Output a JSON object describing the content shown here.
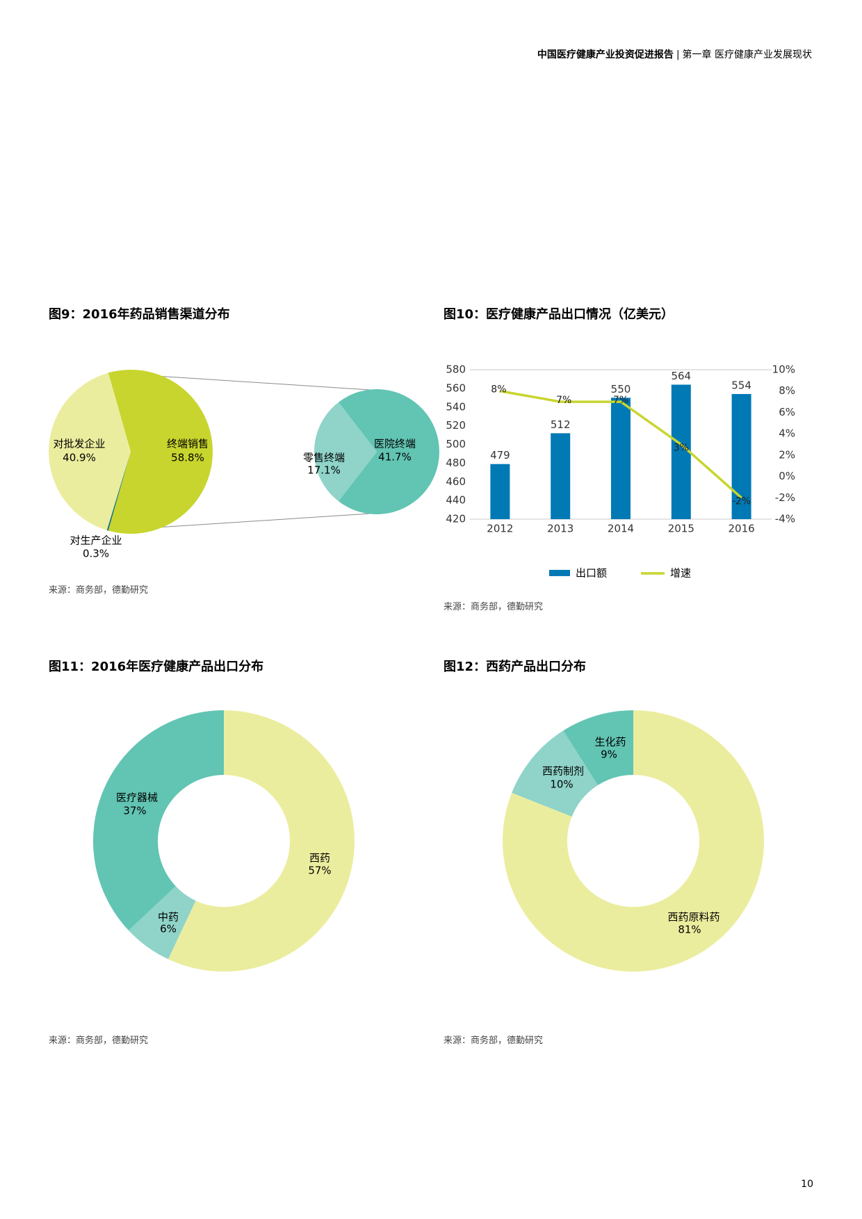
{
  "header": {
    "report": "中国医疗健康产业投资促进报告",
    "separator": "|",
    "chapter": "第一章  医疗健康产业发展现状"
  },
  "page_number": "10",
  "colors": {
    "lime": "#c8d52e",
    "pale_yellow": "#ebed9e",
    "teal": "#62c4b3",
    "pale_teal": "#8fd3c9",
    "blue": "#0079b5",
    "dark_teal": "#1c7a7e"
  },
  "charts": [
    {
      "title": "图9：2016年药品销售渠道分布",
      "source": "来源：商务部，德勤研究",
      "chart_data": {
        "type": "pie",
        "main": [
          {
            "label": "终端销售",
            "value": "58.8%",
            "pct": 58.8
          },
          {
            "label": "对生产企业",
            "value": "0.3%",
            "pct": 0.3
          },
          {
            "label": "对批发企业",
            "value": "40.9%",
            "pct": 40.9
          }
        ],
        "breakout": [
          {
            "label": "医院终端",
            "value": "41.7%",
            "pct": 41.7
          },
          {
            "label": "零售终端",
            "value": "17.1%",
            "pct": 17.1
          }
        ]
      }
    },
    {
      "title": "图10：医疗健康产品出口情况（亿美元）",
      "source": "来源：商务部，德勤研究",
      "chart_data": {
        "type": "bar",
        "categories": [
          "2012",
          "2013",
          "2014",
          "2015",
          "2016"
        ],
        "series": [
          {
            "name": "出口额",
            "values": [
              479,
              512,
              550,
              564,
              554
            ],
            "labels": [
              "479",
              "512",
              "550",
              "564",
              "554"
            ]
          },
          {
            "name": "增速",
            "values": [
              8,
              7,
              7,
              3,
              -2
            ],
            "labels": [
              "8%",
              "7%",
              "7%",
              "3%",
              "-2%"
            ]
          }
        ],
        "y_left": {
          "min": 420,
          "max": 580,
          "ticks": [
            "420",
            "440",
            "460",
            "480",
            "500",
            "520",
            "540",
            "560",
            "580"
          ]
        },
        "y_right": {
          "min": -4,
          "max": 10,
          "ticks": [
            "-4%",
            "-2%",
            "0%",
            "2%",
            "4%",
            "6%",
            "8%",
            "10%"
          ]
        },
        "legend": "bottom"
      }
    },
    {
      "title": "图11：2016年医疗健康产品出口分布",
      "source": "来源：商务部，德勤研究",
      "chart_data": {
        "type": "pie",
        "slices": [
          {
            "label": "西药",
            "value": "57%",
            "pct": 57
          },
          {
            "label": "中药",
            "value": "6%",
            "pct": 6
          },
          {
            "label": "医疗器械",
            "value": "37%",
            "pct": 37
          }
        ]
      }
    },
    {
      "title": "图12：西药产品出口分布",
      "source": "来源：商务部，德勤研究",
      "chart_data": {
        "type": "pie",
        "slices": [
          {
            "label": "西药原料药",
            "value": "81%",
            "pct": 81
          },
          {
            "label": "西药制剂",
            "value": "10%",
            "pct": 10
          },
          {
            "label": "生化药",
            "value": "9%",
            "pct": 9
          }
        ]
      }
    }
  ]
}
